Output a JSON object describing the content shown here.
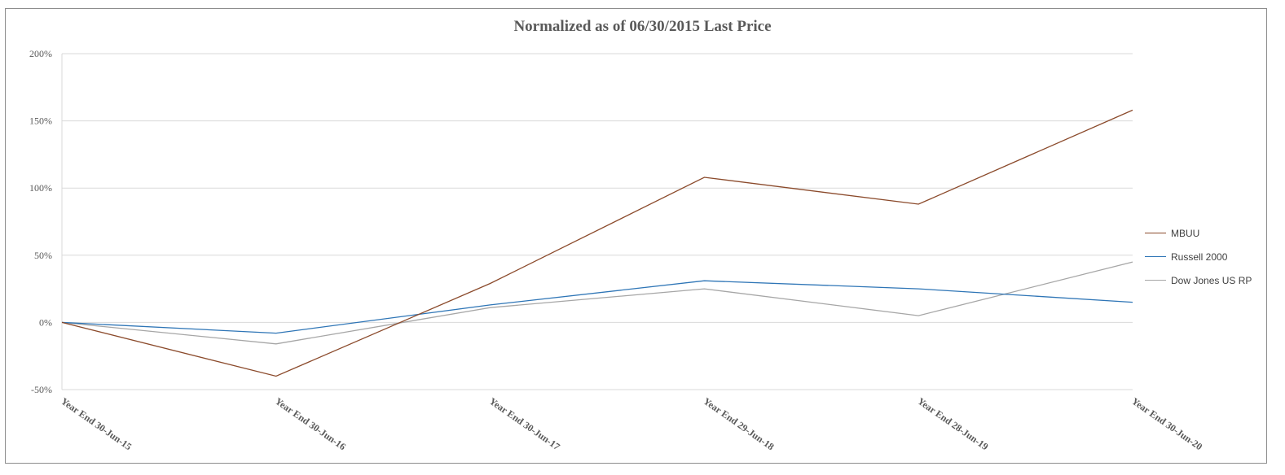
{
  "chart_data": {
    "type": "line",
    "title": "Normalized as of 06/30/2015 Last Price",
    "categories": [
      "Year End 30-Jun-15",
      "Year End 30-Jun-16",
      "Year End 30-Jun-17",
      "Year End 29-Jun-18",
      "Year End 28-Jun-19",
      "Year End 30-Jun-20"
    ],
    "y_tick_labels": [
      "200%",
      "150%",
      "100%",
      "50%",
      "0%",
      "-50%"
    ],
    "y_ticks": [
      200,
      150,
      100,
      50,
      0,
      -50
    ],
    "ylim": [
      -50,
      200
    ],
    "y_unit": "%",
    "grid": true,
    "legend_position": "right",
    "series": [
      {
        "name": "MBUU",
        "color": "#8b4a2b",
        "values": [
          0,
          -40,
          29,
          108,
          88,
          158
        ]
      },
      {
        "name": "Russell 2000",
        "color": "#2e75b6",
        "values": [
          0,
          -8,
          13,
          31,
          25,
          15
        ]
      },
      {
        "name": "Dow Jones US RP",
        "color": "#a6a6a6",
        "values": [
          0,
          -16,
          11,
          25,
          5,
          45
        ]
      }
    ]
  }
}
